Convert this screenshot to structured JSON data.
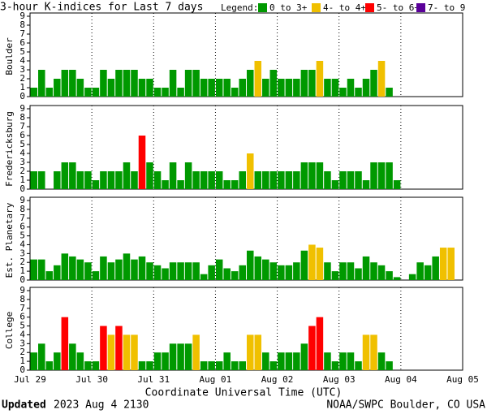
{
  "title": "3-hour K-indices for Last 7 days",
  "legend_title": "Legend:",
  "legend": [
    {
      "label": "0 to 3+",
      "color": "#009900"
    },
    {
      "label": "4- to 4+",
      "color": "#f0c000"
    },
    {
      "label": "5- to 6+",
      "color": "#ff0000"
    },
    {
      "label": "7- to 9",
      "color": "#5a0099"
    }
  ],
  "x_axis": {
    "label": "Coordinate Universal Time (UTC)",
    "xlim": [
      0,
      7
    ],
    "xticks": [
      {
        "value": 0,
        "label": "Jul 29"
      },
      {
        "value": 1,
        "label": "Jul 30"
      },
      {
        "value": 2,
        "label": "Jul 31"
      },
      {
        "value": 3,
        "label": "Aug 01"
      },
      {
        "value": 4,
        "label": "Aug 02"
      },
      {
        "value": 5,
        "label": "Aug 03"
      },
      {
        "value": 6,
        "label": "Aug 04"
      },
      {
        "value": 7,
        "label": "Aug 05"
      }
    ],
    "x": [
      0,
      0.125,
      0.25,
      0.375,
      0.5,
      0.625,
      0.75,
      0.875,
      1,
      1.125,
      1.25,
      1.375,
      1.5,
      1.625,
      1.75,
      1.875,
      2,
      2.125,
      2.25,
      2.375,
      2.5,
      2.625,
      2.75,
      2.875,
      3,
      3.125,
      3.25,
      3.375,
      3.5,
      3.625,
      3.75,
      3.875,
      4,
      4.125,
      4.25,
      4.375,
      4.5,
      4.625,
      4.75,
      4.875,
      5,
      5.125,
      5.25,
      5.375,
      5.5,
      5.625,
      5.75,
      5.875,
      6,
      6.125,
      6.25,
      6.375,
      6.5,
      6.625,
      6.75,
      6.875
    ],
    "grid": true
  },
  "footer": {
    "updated": "Updated",
    "time": "2023 Aug  4 2130",
    "source": "NOAA/SWPC Boulder, CO USA"
  },
  "chart_data": [
    {
      "type": "bar",
      "ylabel": "Boulder",
      "ylim": [
        0,
        9
      ],
      "yticks": [
        0,
        1,
        2,
        3,
        4,
        5,
        6,
        7,
        8,
        9
      ],
      "values": [
        1,
        3,
        1,
        2,
        3,
        3,
        2,
        1,
        1,
        3,
        2,
        3,
        3,
        3,
        2,
        2,
        1,
        1,
        3,
        1,
        3,
        3,
        2,
        2,
        2,
        2,
        1,
        2,
        3,
        4,
        2,
        3,
        2,
        2,
        2,
        3,
        3,
        4,
        2,
        2,
        1,
        2,
        1,
        2,
        3,
        4,
        1,
        null,
        null,
        null,
        null,
        null,
        null,
        null,
        null,
        null
      ],
      "colors": [
        "#009900",
        "#009900",
        "#009900",
        "#009900",
        "#009900",
        "#009900",
        "#009900",
        "#009900",
        "#009900",
        "#009900",
        "#009900",
        "#009900",
        "#009900",
        "#009900",
        "#009900",
        "#009900",
        "#009900",
        "#009900",
        "#009900",
        "#009900",
        "#009900",
        "#009900",
        "#009900",
        "#009900",
        "#009900",
        "#009900",
        "#009900",
        "#009900",
        "#009900",
        "#f0c000",
        "#009900",
        "#009900",
        "#009900",
        "#009900",
        "#009900",
        "#009900",
        "#009900",
        "#f0c000",
        "#009900",
        "#009900",
        "#009900",
        "#009900",
        "#009900",
        "#009900",
        "#009900",
        "#f0c000",
        "#009900",
        null,
        null,
        null,
        null,
        null,
        null,
        null,
        null,
        null
      ]
    },
    {
      "type": "bar",
      "ylabel": "Fredericksburg",
      "ylim": [
        0,
        9
      ],
      "yticks": [
        0,
        1,
        2,
        3,
        4,
        5,
        6,
        7,
        8,
        9
      ],
      "values": [
        2,
        2,
        0,
        2,
        3,
        3,
        2,
        2,
        1,
        2,
        2,
        2,
        3,
        2,
        6,
        3,
        2,
        1,
        3,
        1,
        3,
        2,
        2,
        2,
        2,
        1,
        1,
        2,
        4,
        2,
        2,
        2,
        2,
        2,
        2,
        3,
        3,
        3,
        2,
        1,
        2,
        2,
        2,
        1,
        3,
        3,
        3,
        1,
        null,
        null,
        null,
        null,
        null,
        null,
        null,
        null
      ],
      "colors": [
        "#009900",
        "#009900",
        "#009900",
        "#009900",
        "#009900",
        "#009900",
        "#009900",
        "#009900",
        "#009900",
        "#009900",
        "#009900",
        "#009900",
        "#009900",
        "#009900",
        "#ff0000",
        "#009900",
        "#009900",
        "#009900",
        "#009900",
        "#009900",
        "#009900",
        "#009900",
        "#009900",
        "#009900",
        "#009900",
        "#009900",
        "#009900",
        "#009900",
        "#f0c000",
        "#009900",
        "#009900",
        "#009900",
        "#009900",
        "#009900",
        "#009900",
        "#009900",
        "#009900",
        "#009900",
        "#009900",
        "#009900",
        "#009900",
        "#009900",
        "#009900",
        "#009900",
        "#009900",
        "#009900",
        "#009900",
        "#009900",
        null,
        null,
        null,
        null,
        null,
        null,
        null,
        null
      ]
    },
    {
      "type": "bar",
      "ylabel": "Est. Planetary",
      "ylim": [
        0,
        9
      ],
      "yticks": [
        0,
        1,
        2,
        3,
        4,
        5,
        6,
        7,
        8,
        9
      ],
      "values": [
        2.33,
        2.33,
        1,
        1.67,
        3,
        2.67,
        2.33,
        2,
        1,
        2.67,
        2,
        2.33,
        3,
        2.33,
        2.67,
        2,
        1.67,
        1.33,
        2,
        2,
        2,
        2,
        0.67,
        1.67,
        2.33,
        1.33,
        1,
        1.67,
        3.33,
        2.67,
        2.33,
        2,
        1.67,
        1.67,
        2,
        3.33,
        4,
        3.67,
        2,
        1,
        2,
        2,
        1.33,
        2.67,
        2,
        1.67,
        1,
        0.33,
        0,
        0.67,
        2,
        1.67,
        2.67,
        3.67,
        3.67,
        null
      ],
      "colors": [
        "#009900",
        "#009900",
        "#009900",
        "#009900",
        "#009900",
        "#009900",
        "#009900",
        "#009900",
        "#009900",
        "#009900",
        "#009900",
        "#009900",
        "#009900",
        "#009900",
        "#009900",
        "#009900",
        "#009900",
        "#009900",
        "#009900",
        "#009900",
        "#009900",
        "#009900",
        "#009900",
        "#009900",
        "#009900",
        "#009900",
        "#009900",
        "#009900",
        "#009900",
        "#009900",
        "#009900",
        "#009900",
        "#009900",
        "#009900",
        "#009900",
        "#009900",
        "#f0c000",
        "#f0c000",
        "#009900",
        "#009900",
        "#009900",
        "#009900",
        "#009900",
        "#009900",
        "#009900",
        "#009900",
        "#009900",
        "#009900",
        "#009900",
        "#009900",
        "#009900",
        "#009900",
        "#009900",
        "#f0c000",
        "#f0c000",
        null
      ]
    },
    {
      "type": "bar",
      "ylabel": "College",
      "ylim": [
        0,
        9
      ],
      "yticks": [
        0,
        1,
        2,
        3,
        4,
        5,
        6,
        7,
        8,
        9
      ],
      "values": [
        2,
        3,
        1,
        2,
        6,
        3,
        2,
        1,
        1,
        5,
        4,
        5,
        4,
        4,
        1,
        1,
        2,
        2,
        3,
        3,
        3,
        4,
        1,
        1,
        1,
        2,
        1,
        1,
        4,
        4,
        2,
        1,
        2,
        2,
        2,
        3,
        5,
        6,
        2,
        1,
        2,
        2,
        1,
        4,
        4,
        2,
        1,
        null,
        null,
        null,
        null,
        null,
        null,
        null,
        null,
        null
      ],
      "colors": [
        "#009900",
        "#009900",
        "#009900",
        "#009900",
        "#ff0000",
        "#009900",
        "#009900",
        "#009900",
        "#009900",
        "#ff0000",
        "#f0c000",
        "#ff0000",
        "#f0c000",
        "#f0c000",
        "#009900",
        "#009900",
        "#009900",
        "#009900",
        "#009900",
        "#009900",
        "#009900",
        "#f0c000",
        "#009900",
        "#009900",
        "#009900",
        "#009900",
        "#009900",
        "#009900",
        "#f0c000",
        "#f0c000",
        "#009900",
        "#009900",
        "#009900",
        "#009900",
        "#009900",
        "#009900",
        "#ff0000",
        "#ff0000",
        "#009900",
        "#009900",
        "#009900",
        "#009900",
        "#009900",
        "#f0c000",
        "#f0c000",
        "#009900",
        "#009900",
        null,
        null,
        null,
        null,
        null,
        null,
        null,
        null,
        null
      ]
    }
  ]
}
